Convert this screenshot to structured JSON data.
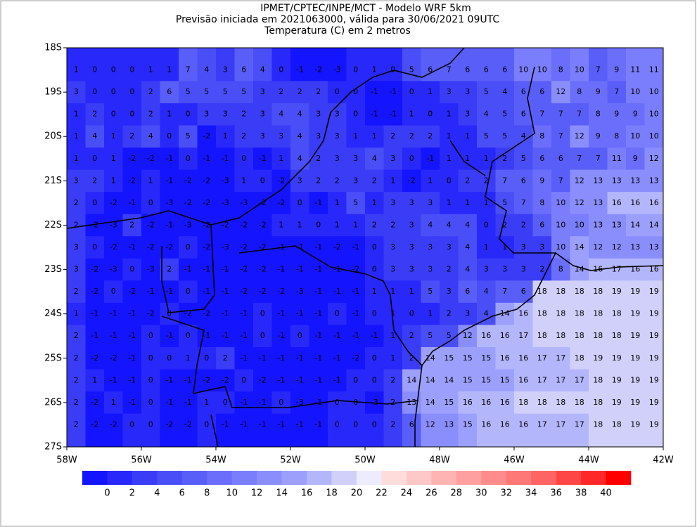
{
  "header": {
    "lines": [
      "IPMET/CPTEC/INPE/MCT - Modelo WRF 5km",
      "Previsão iniciada em 2021063000, válida para 30/06/2021 09UTC",
      "Temperatura (C) em 2 metros"
    ]
  },
  "chart_data": {
    "type": "heatmap",
    "xlim": [
      -58,
      -42
    ],
    "ylim": [
      -27,
      -18
    ],
    "xticks": [
      {
        "value": -58,
        "label": "58W"
      },
      {
        "value": -56,
        "label": "56W"
      },
      {
        "value": -54,
        "label": "54W"
      },
      {
        "value": -52,
        "label": "52W"
      },
      {
        "value": -50,
        "label": "50W"
      },
      {
        "value": -48,
        "label": "48W"
      },
      {
        "value": -46,
        "label": "46W"
      },
      {
        "value": -44,
        "label": "44W"
      },
      {
        "value": -42,
        "label": "42W"
      }
    ],
    "yticks": [
      {
        "value": -18,
        "label": "18S"
      },
      {
        "value": -19,
        "label": "19S"
      },
      {
        "value": -20,
        "label": "20S"
      },
      {
        "value": -21,
        "label": "21S"
      },
      {
        "value": -22,
        "label": "22S"
      },
      {
        "value": -23,
        "label": "23S"
      },
      {
        "value": -24,
        "label": "24S"
      },
      {
        "value": -25,
        "label": "25S"
      },
      {
        "value": -26,
        "label": "26S"
      },
      {
        "value": -27,
        "label": "27S"
      }
    ],
    "lons": [
      -57.75,
      -57.25,
      -56.75,
      -56.25,
      -55.75,
      -55.25,
      -54.75,
      -54.25,
      -53.75,
      -53.25,
      -52.75,
      -52.25,
      -51.75,
      -51.25,
      -50.75,
      -50.25,
      -49.75,
      -49.25,
      -48.75,
      -48.25,
      -47.75,
      -47.25,
      -46.75,
      -46.25,
      -45.75,
      -45.25,
      -44.75,
      -44.25,
      -43.75,
      -43.25,
      -42.75,
      -42.25
    ],
    "lats": [
      -18.5,
      -19,
      -19.5,
      -20,
      -20.5,
      -21,
      -21.5,
      -22,
      -22.5,
      -23,
      -23.5,
      -24,
      -24.5,
      -25,
      -25.5,
      -26,
      -26.5
    ],
    "values": [
      [
        1,
        0,
        0,
        0,
        1,
        1,
        7,
        4,
        3,
        6,
        4,
        0,
        -1,
        -2,
        -3,
        0,
        1,
        0,
        5,
        6,
        7,
        6,
        6,
        6,
        10,
        10,
        8,
        10,
        7,
        9,
        11,
        11
      ],
      [
        3,
        0,
        0,
        0,
        2,
        6,
        5,
        5,
        5,
        5,
        3,
        2,
        2,
        2,
        0,
        0,
        -1,
        -1,
        0,
        1,
        3,
        3,
        5,
        4,
        6,
        6,
        12,
        8,
        9,
        7,
        10,
        10
      ],
      [
        1,
        2,
        0,
        0,
        2,
        1,
        0,
        3,
        3,
        2,
        3,
        4,
        4,
        3,
        3,
        0,
        -1,
        -1,
        1,
        0,
        1,
        3,
        4,
        5,
        6,
        7,
        7,
        7,
        8,
        9,
        9,
        10
      ],
      [
        1,
        4,
        1,
        2,
        4,
        0,
        5,
        -2,
        1,
        2,
        3,
        3,
        4,
        3,
        3,
        1,
        1,
        2,
        2,
        2,
        1,
        1,
        5,
        5,
        4,
        8,
        7,
        12,
        9,
        8,
        10,
        10
      ],
      [
        1,
        0,
        1,
        -2,
        -2,
        -1,
        0,
        -1,
        -1,
        0,
        -1,
        1,
        4,
        2,
        3,
        3,
        4,
        3,
        0,
        -1,
        1,
        1,
        1,
        2,
        5,
        6,
        6,
        7,
        7,
        11,
        9,
        12
      ],
      [
        3,
        2,
        1,
        -2,
        1,
        -1,
        -2,
        -2,
        -3,
        1,
        0,
        -2,
        3,
        2,
        2,
        3,
        2,
        1,
        -2,
        1,
        0,
        2,
        2,
        7,
        6,
        9,
        7,
        12,
        13,
        13,
        13,
        13
      ],
      [
        2,
        0,
        -2,
        -1,
        0,
        -3,
        -2,
        -2,
        -3,
        -3,
        -2,
        -2,
        0,
        -1,
        1,
        5,
        1,
        3,
        3,
        3,
        1,
        1,
        1,
        5,
        7,
        8,
        10,
        12,
        13,
        16,
        16,
        16
      ],
      [
        2,
        -2,
        -3,
        2,
        -2,
        -1,
        -3,
        -2,
        -2,
        -2,
        -2,
        1,
        1,
        0,
        1,
        1,
        2,
        2,
        3,
        4,
        4,
        4,
        0,
        2,
        2,
        6,
        10,
        10,
        13,
        13,
        14,
        14
      ],
      [
        3,
        0,
        -2,
        -1,
        -2,
        -2,
        0,
        -2,
        -3,
        -2,
        -2,
        -1,
        -1,
        -1,
        -2,
        -1,
        0,
        3,
        3,
        3,
        3,
        4,
        1,
        1,
        3,
        3,
        10,
        14,
        12,
        12,
        13,
        13
      ],
      [
        3,
        -2,
        -3,
        0,
        -3,
        2,
        -1,
        -1,
        -1,
        -2,
        -2,
        -1,
        -1,
        -1,
        -1,
        -2,
        0,
        3,
        3,
        3,
        2,
        4,
        3,
        3,
        3,
        2,
        8,
        14,
        16,
        17,
        16,
        16
      ],
      [
        2,
        -2,
        0,
        -2,
        -1,
        -1,
        0,
        -1,
        -1,
        -2,
        -2,
        -2,
        -3,
        -1,
        -1,
        -1,
        1,
        1,
        1,
        5,
        3,
        6,
        4,
        7,
        6,
        18,
        18,
        18,
        18,
        19,
        19,
        19
      ],
      [
        1,
        -1,
        -1,
        -1,
        -2,
        0,
        -2,
        -2,
        -1,
        -1,
        0,
        -1,
        -1,
        -1,
        0,
        -1,
        0,
        1,
        0,
        1,
        2,
        3,
        4,
        14,
        16,
        18,
        18,
        18,
        18,
        18,
        19,
        19
      ],
      [
        2,
        -1,
        -1,
        -1,
        0,
        -1,
        0,
        -1,
        -1,
        -1,
        0,
        -1,
        0,
        -1,
        -1,
        -1,
        -1,
        1,
        2,
        5,
        5,
        12,
        16,
        16,
        17,
        18,
        18,
        18,
        18,
        18,
        19,
        19
      ],
      [
        2,
        -2,
        -2,
        -1,
        0,
        0,
        1,
        0,
        2,
        -1,
        -1,
        -1,
        -1,
        -1,
        -1,
        -2,
        0,
        1,
        2,
        14,
        15,
        15,
        15,
        16,
        16,
        17,
        17,
        18,
        19,
        19,
        19,
        19
      ],
      [
        2,
        1,
        -1,
        -1,
        0,
        -1,
        -1,
        -2,
        -2,
        0,
        -2,
        -1,
        -1,
        -1,
        -1,
        0,
        0,
        2,
        14,
        14,
        14,
        15,
        15,
        15,
        16,
        17,
        17,
        17,
        18,
        19,
        19,
        19
      ],
      [
        2,
        -2,
        1,
        -1,
        0,
        -1,
        -1,
        1,
        0,
        -1,
        -1,
        0,
        -3,
        -1,
        0,
        0,
        -3,
        2,
        13,
        14,
        15,
        16,
        16,
        16,
        18,
        18,
        18,
        18,
        18,
        19,
        19,
        19
      ],
      [
        2,
        -2,
        -2,
        0,
        0,
        -2,
        -2,
        0,
        -1,
        -1,
        -1,
        -1,
        -1,
        -1,
        0,
        0,
        0,
        2,
        6,
        12,
        13,
        15,
        16,
        16,
        16,
        17,
        17,
        17,
        18,
        18,
        19,
        19
      ]
    ],
    "colorbar": {
      "levels": [
        0,
        2,
        4,
        6,
        8,
        10,
        12,
        14,
        16,
        18,
        20,
        22,
        24,
        26,
        28,
        30,
        32,
        34,
        36,
        38,
        40
      ],
      "colors": [
        "#1414ff",
        "#2828fa",
        "#3a3cf6",
        "#4a4ef6",
        "#5a5ef8",
        "#6a6efa",
        "#7a7efc",
        "#8a8efc",
        "#9ca0fc",
        "#b4b6fc",
        "#d0d0fa",
        "#ececfc",
        "#ffdcdc",
        "#ffc8c8",
        "#ffb4b4",
        "#ffa0a0",
        "#ff8c8c",
        "#ff7878",
        "#ff6464",
        "#ff4646",
        "#ff2828",
        "#ff0000"
      ]
    }
  }
}
